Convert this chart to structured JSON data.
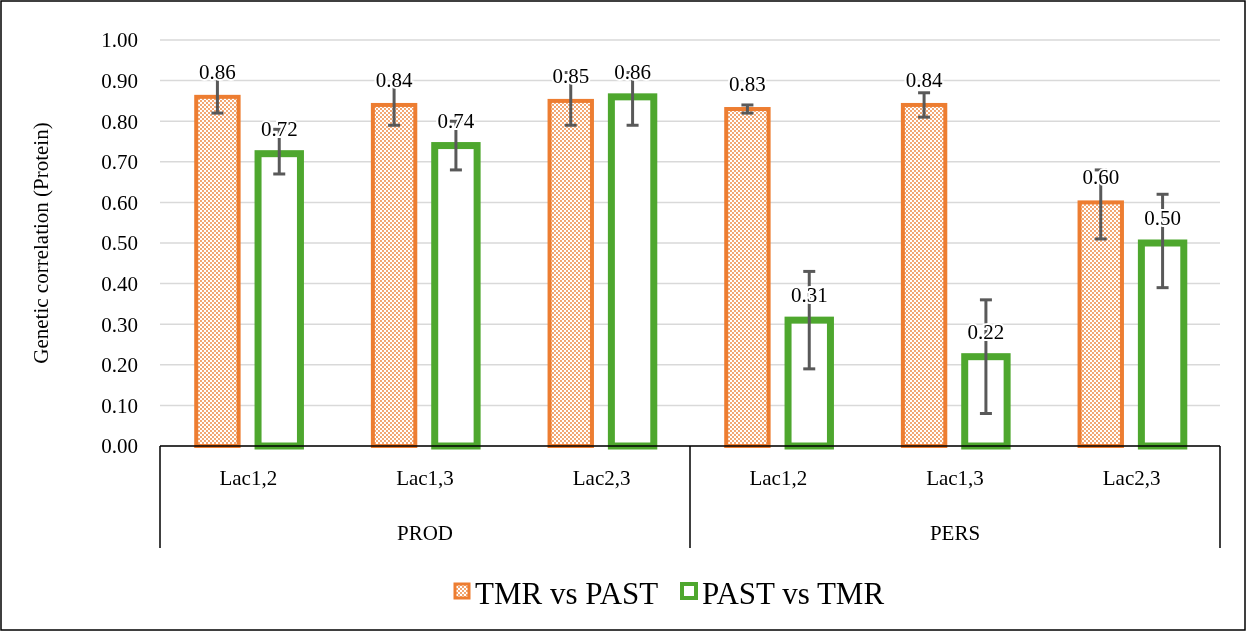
{
  "chart_data": {
    "type": "bar",
    "ylabel": "Genetic correlation (Protein)",
    "categories": [
      "Lac1,2",
      "Lac1,3",
      "Lac2,3",
      "Lac1,2",
      "Lac1,3",
      "Lac2,3"
    ],
    "annotations": [
      "PROD",
      "PERS"
    ],
    "series": [
      {
        "name": "TMR vs PAST",
        "color": "#ed7d31",
        "values": [
          0.86,
          0.84,
          0.85,
          0.83,
          0.84,
          0.6
        ],
        "value_labels": [
          "0.86",
          "0.84",
          "0.85",
          "0.83",
          "0.84",
          "0.60"
        ],
        "errors": [
          [
            0.82,
            0.91
          ],
          [
            0.79,
            0.89
          ],
          [
            0.79,
            0.92
          ],
          [
            0.82,
            0.84
          ],
          [
            0.81,
            0.87
          ],
          [
            0.51,
            0.68
          ]
        ]
      },
      {
        "name": "PAST vs TMR",
        "color": "#4ea72e",
        "values": [
          0.72,
          0.74,
          0.86,
          0.31,
          0.22,
          0.5
        ],
        "value_labels": [
          "0.72",
          "0.74",
          "0.86",
          "0.31",
          "0.22",
          "0.50"
        ],
        "errors": [
          [
            0.67,
            0.78
          ],
          [
            0.68,
            0.8
          ],
          [
            0.79,
            0.92
          ],
          [
            0.19,
            0.43
          ],
          [
            0.08,
            0.36
          ],
          [
            0.39,
            0.62
          ]
        ]
      }
    ],
    "ylim": [
      0,
      1
    ],
    "yticks": [
      {
        "value": 0,
        "label": "0.00"
      },
      {
        "value": 0.1,
        "label": "0.10"
      },
      {
        "value": 0.2,
        "label": "0.20"
      },
      {
        "value": 0.3,
        "label": "0.30"
      },
      {
        "value": 0.4,
        "label": "0.40"
      },
      {
        "value": 0.5,
        "label": "0.50"
      },
      {
        "value": 0.6,
        "label": "0.60"
      },
      {
        "value": 0.7,
        "label": "0.70"
      },
      {
        "value": 0.8,
        "label": "0.80"
      },
      {
        "value": 0.9,
        "label": "0.90"
      },
      {
        "value": 1,
        "label": "1.00"
      }
    ],
    "grid": "y",
    "legend": "bottom"
  }
}
